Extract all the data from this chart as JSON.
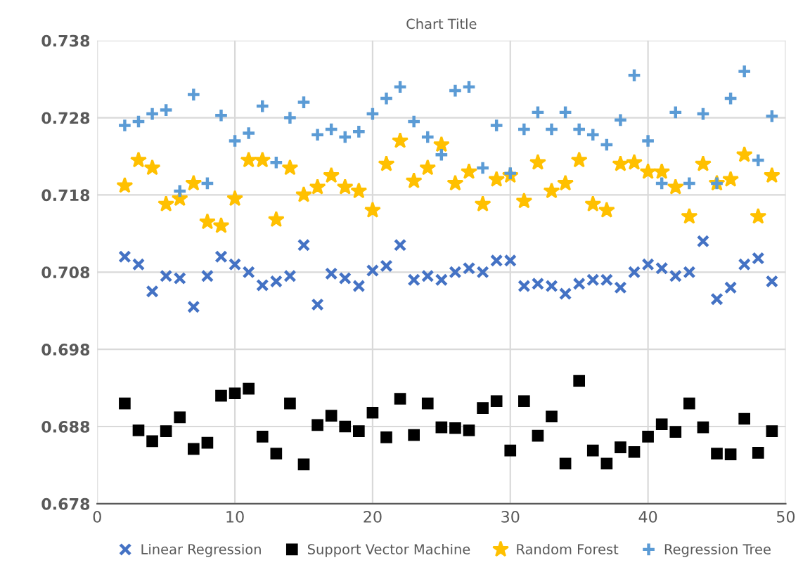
{
  "chart_data": {
    "type": "scatter",
    "title": "Chart Title",
    "x": [
      2,
      3,
      4,
      5,
      6,
      7,
      8,
      9,
      10,
      11,
      12,
      13,
      14,
      15,
      16,
      17,
      18,
      19,
      20,
      21,
      22,
      23,
      24,
      25,
      26,
      27,
      28,
      29,
      30,
      31,
      32,
      33,
      34,
      35,
      36,
      37,
      38,
      39,
      40,
      41,
      42,
      43,
      44,
      45,
      46,
      47,
      48,
      49
    ],
    "series": [
      {
        "name": "Linear Regression",
        "color": "#4472c4",
        "marker": "x",
        "values": [
          0.71,
          0.709,
          0.7055,
          0.7075,
          0.7072,
          0.7035,
          0.7075,
          0.71,
          0.709,
          0.708,
          0.7063,
          0.7068,
          0.7075,
          0.7115,
          0.7038,
          0.7078,
          0.7072,
          0.7062,
          0.7082,
          0.7088,
          0.7115,
          0.707,
          0.7075,
          0.707,
          0.708,
          0.7085,
          0.708,
          0.7095,
          0.7095,
          0.7062,
          0.7065,
          0.7062,
          0.7052,
          0.7065,
          0.707,
          0.707,
          0.706,
          0.708,
          0.709,
          0.7085,
          0.7075,
          0.708,
          0.712,
          0.7045,
          0.706,
          0.709,
          0.7098,
          0.7068
        ]
      },
      {
        "name": "Support Vector Machine",
        "color": "#000000",
        "marker": "square",
        "values": [
          0.691,
          0.6875,
          0.6861,
          0.6874,
          0.6892,
          0.6851,
          0.6859,
          0.692,
          0.6923,
          0.6929,
          0.6867,
          0.6845,
          0.691,
          0.6831,
          0.6882,
          0.6894,
          0.688,
          0.6874,
          0.6898,
          0.6866,
          0.6916,
          0.6869,
          0.691,
          0.6879,
          0.6878,
          0.6875,
          0.6904,
          0.6913,
          0.6849,
          0.6913,
          0.6868,
          0.6893,
          0.6832,
          0.6939,
          0.6849,
          0.6832,
          0.6853,
          0.6847,
          0.6867,
          0.6883,
          0.6873,
          0.691,
          0.6879,
          0.6845,
          0.6844,
          0.689,
          0.6846,
          0.6874
        ]
      },
      {
        "name": "Random Forest",
        "color": "#ffc000",
        "marker": "star",
        "values": [
          0.7192,
          0.7225,
          0.7215,
          0.7168,
          0.7175,
          0.7195,
          0.7145,
          0.714,
          0.7175,
          0.7225,
          0.7225,
          0.7148,
          0.7215,
          0.718,
          0.719,
          0.7205,
          0.719,
          0.7185,
          0.716,
          0.722,
          0.725,
          0.7198,
          0.7215,
          0.7245,
          0.7195,
          0.721,
          0.7168,
          0.72,
          0.7205,
          0.7172,
          0.7222,
          0.7185,
          0.7195,
          0.7225,
          0.7168,
          0.716,
          0.722,
          0.7222,
          0.721,
          0.721,
          0.719,
          0.7152,
          0.722,
          0.7195,
          0.72,
          0.7232,
          0.7152,
          0.7205
        ]
      },
      {
        "name": "Regression Tree",
        "color": "#5b9bd5",
        "marker": "plus",
        "values": [
          0.727,
          0.7275,
          0.7285,
          0.729,
          0.7185,
          0.731,
          0.7195,
          0.7283,
          0.725,
          0.726,
          0.7295,
          0.7222,
          0.728,
          0.73,
          0.7258,
          0.7265,
          0.7255,
          0.7262,
          0.7285,
          0.7305,
          0.732,
          0.7275,
          0.7255,
          0.7232,
          0.7315,
          0.732,
          0.7215,
          0.727,
          0.7208,
          0.7265,
          0.7287,
          0.7265,
          0.7287,
          0.7265,
          0.7258,
          0.7245,
          0.7277,
          0.7335,
          0.725,
          0.7195,
          0.7287,
          0.7195,
          0.7285,
          0.7195,
          0.7305,
          0.734,
          0.7225,
          0.7282
        ]
      }
    ],
    "xlim": [
      0,
      50
    ],
    "xticks": [
      0,
      10,
      20,
      30,
      40,
      50
    ],
    "ylim": [
      0.678,
      0.738
    ],
    "yticks": [
      0.678,
      0.688,
      0.698,
      0.708,
      0.718,
      0.728,
      0.738
    ],
    "grid": true,
    "legend": "bottom"
  }
}
